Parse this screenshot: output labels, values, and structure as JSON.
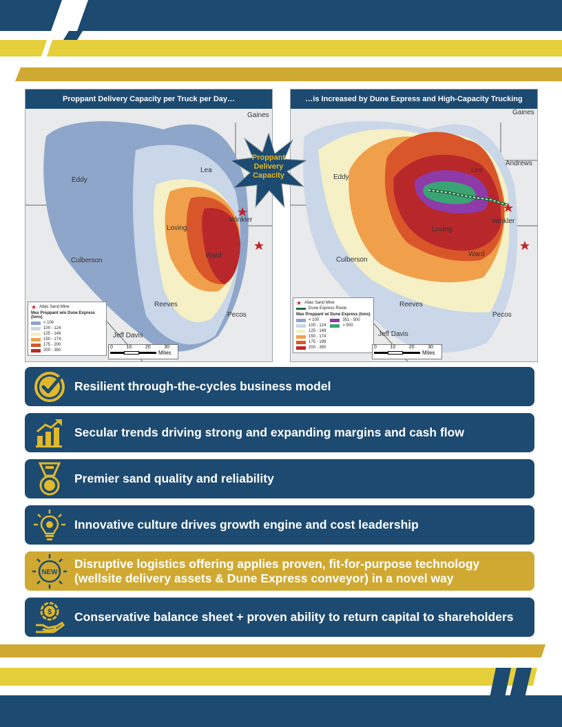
{
  "maps": {
    "left": {
      "title": "Proppant Delivery Capacity per Truck per Day…",
      "labels": [
        "Gaines",
        "Lea",
        "Eddy",
        "Loving",
        "Winkler",
        "Ward",
        "Culberson",
        "Reeves",
        "Pecos",
        "Jeff Davis"
      ],
      "legend": {
        "mine": "Atlas Sand Mine",
        "title": "Max Proppant w/o Dune Express (tons)",
        "classes": [
          {
            "label": "< 100",
            "color": "#8ea6c9"
          },
          {
            "label": "100 - 124",
            "color": "#c9d7e8"
          },
          {
            "label": "125 - 149",
            "color": "#f5f0c6"
          },
          {
            "label": "150 - 174",
            "color": "#f0a04a"
          },
          {
            "label": "175 - 200",
            "color": "#d9562b"
          },
          {
            "label": "200 - 350",
            "color": "#b8282a"
          }
        ]
      },
      "scale": {
        "ticks": [
          "0",
          "10",
          "20",
          "30"
        ],
        "unit": "Miles"
      }
    },
    "right": {
      "title": "…is Increased by Dune Express and High-Capacity Trucking",
      "labels": [
        "Gaines",
        "Andrews",
        "Lea",
        "Eddy",
        "Loving",
        "Winkler",
        "Ward",
        "Culberson",
        "Reeves",
        "Pecos",
        "Jeff Davis"
      ],
      "legend": {
        "mine": "Atlas Sand Mine",
        "route": "Dune Express Route",
        "title": "Max Proppant w/ Dune Express (tons)",
        "classes": [
          {
            "label": "< 100",
            "color": "#8ea6c9"
          },
          {
            "label": "100 - 124",
            "color": "#c9d7e8"
          },
          {
            "label": "125 - 149",
            "color": "#f5f0c6"
          },
          {
            "label": "150 - 174",
            "color": "#f0a04a"
          },
          {
            "label": "175 - 199",
            "color": "#d9562b"
          },
          {
            "label": "200 - 350",
            "color": "#b8282a"
          }
        ],
        "classes_extra": [
          {
            "label": "351 - 500",
            "color": "#8e3aa8"
          },
          {
            "label": "> 500",
            "color": "#3aa373"
          }
        ]
      },
      "scale": {
        "ticks": [
          "0",
          "10",
          "20",
          "30"
        ],
        "unit": "Miles"
      }
    }
  },
  "callout": {
    "lines": [
      "Proppant",
      "Delivery",
      "Capacity"
    ]
  },
  "bullets": [
    {
      "text": "Resilient through-the-cycles business model",
      "icon": "check-badge-icon",
      "style": "navy"
    },
    {
      "text": "Secular trends driving strong and expanding margins and cash flow",
      "icon": "growth-chart-icon",
      "style": "navy"
    },
    {
      "text": "Premier sand quality and reliability",
      "icon": "medal-icon",
      "style": "navy"
    },
    {
      "text": "Innovative culture drives growth engine and cost leadership",
      "icon": "lightbulb-gear-icon",
      "style": "navy"
    },
    {
      "text": "Disruptive logistics offering applies proven, fit-for-purpose technology (wellsite delivery assets & Dune Express conveyor) in a novel way",
      "icon": "new-burst-icon",
      "style": "gold"
    },
    {
      "text": "Conservative balance sheet + proven ability to return capital to shareholders",
      "icon": "money-hand-icon",
      "style": "navy"
    }
  ],
  "colors": {
    "navy": "#1c4a70",
    "gold": "#d0a933",
    "yellow": "#e5cf3a",
    "star": "#c0272d"
  }
}
